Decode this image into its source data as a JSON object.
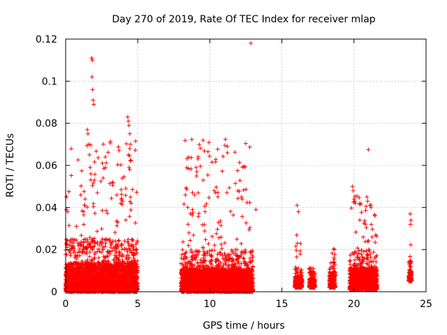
{
  "chart_data": {
    "type": "scatter",
    "title": "Day 270 of 2019, Rate Of TEC Index for receiver mlap",
    "xlabel": "GPS time / hours",
    "ylabel": "ROTI / TECUs",
    "xlim": [
      0,
      25
    ],
    "ylim": [
      0,
      0.12
    ],
    "x_ticks": [
      0,
      5,
      10,
      15,
      20,
      25
    ],
    "y_ticks": [
      0,
      0.02,
      0.04,
      0.06,
      0.08,
      0.1,
      0.12
    ],
    "x_tick_labels": [
      "0",
      "5",
      "10",
      "15",
      "20",
      "25"
    ],
    "y_tick_labels": [
      "0",
      "0.02",
      "0.04",
      "0.06",
      "0.08",
      "0.1",
      "0.12"
    ],
    "grid": true,
    "marker": "+",
    "marker_color": "#ff0000",
    "series": [
      {
        "name": "ROTI",
        "point_count": 8000,
        "clusters": [
          {
            "x_range": [
              0.0,
              5.0
            ],
            "y_floor": 0.0,
            "y_typical_max": 0.025,
            "y_peak": 0.111
          },
          {
            "x_range": [
              8.0,
              13.0
            ],
            "y_floor": 0.0,
            "y_typical_max": 0.02,
            "y_peak": 0.118
          },
          {
            "x_range": [
              15.9,
              16.4
            ],
            "y_floor": 0.002,
            "y_typical_max": 0.012,
            "y_peak": 0.041
          },
          {
            "x_range": [
              16.9,
              17.3
            ],
            "y_floor": 0.002,
            "y_typical_max": 0.01,
            "y_peak": 0.013
          },
          {
            "x_range": [
              18.3,
              18.7
            ],
            "y_floor": 0.002,
            "y_typical_max": 0.015,
            "y_peak": 0.025
          },
          {
            "x_range": [
              19.7,
              21.6
            ],
            "y_floor": 0.001,
            "y_typical_max": 0.02,
            "y_peak": 0.068
          },
          {
            "x_range": [
              23.8,
              24.0
            ],
            "y_floor": 0.005,
            "y_typical_max": 0.015,
            "y_peak": 0.037
          }
        ],
        "notable_points": [
          {
            "x": 0.05,
            "y": 0.039
          },
          {
            "x": 0.15,
            "y": 0.038
          },
          {
            "x": 1.05,
            "y": 0.046
          },
          {
            "x": 1.35,
            "y": 0.044
          },
          {
            "x": 1.5,
            "y": 0.077
          },
          {
            "x": 1.55,
            "y": 0.075
          },
          {
            "x": 1.6,
            "y": 0.07
          },
          {
            "x": 1.65,
            "y": 0.065
          },
          {
            "x": 1.7,
            "y": 0.059
          },
          {
            "x": 1.75,
            "y": 0.056
          },
          {
            "x": 1.8,
            "y": 0.111
          },
          {
            "x": 1.85,
            "y": 0.11
          },
          {
            "x": 1.83,
            "y": 0.102
          },
          {
            "x": 1.87,
            "y": 0.096
          },
          {
            "x": 1.9,
            "y": 0.091
          },
          {
            "x": 1.95,
            "y": 0.089
          },
          {
            "x": 2.0,
            "y": 0.053
          },
          {
            "x": 2.2,
            "y": 0.047
          },
          {
            "x": 2.55,
            "y": 0.061
          },
          {
            "x": 2.75,
            "y": 0.064
          },
          {
            "x": 2.6,
            "y": 0.054
          },
          {
            "x": 3.25,
            "y": 0.052
          },
          {
            "x": 3.55,
            "y": 0.046
          },
          {
            "x": 3.95,
            "y": 0.043
          },
          {
            "x": 4.3,
            "y": 0.083
          },
          {
            "x": 4.35,
            "y": 0.081
          },
          {
            "x": 4.4,
            "y": 0.079
          },
          {
            "x": 4.45,
            "y": 0.075
          },
          {
            "x": 4.5,
            "y": 0.07
          },
          {
            "x": 4.45,
            "y": 0.068
          },
          {
            "x": 4.35,
            "y": 0.065
          },
          {
            "x": 4.4,
            "y": 0.059
          },
          {
            "x": 4.45,
            "y": 0.058
          },
          {
            "x": 4.5,
            "y": 0.045
          },
          {
            "x": 4.55,
            "y": 0.042
          },
          {
            "x": 8.8,
            "y": 0.039
          },
          {
            "x": 8.95,
            "y": 0.046
          },
          {
            "x": 9.05,
            "y": 0.059
          },
          {
            "x": 9.1,
            "y": 0.057
          },
          {
            "x": 9.08,
            "y": 0.055
          },
          {
            "x": 9.2,
            "y": 0.047
          },
          {
            "x": 10.3,
            "y": 0.048
          },
          {
            "x": 10.4,
            "y": 0.047
          },
          {
            "x": 12.2,
            "y": 0.045
          },
          {
            "x": 12.25,
            "y": 0.044
          },
          {
            "x": 12.85,
            "y": 0.118
          },
          {
            "x": 13.2,
            "y": 0.039
          },
          {
            "x": 16.05,
            "y": 0.041
          },
          {
            "x": 16.15,
            "y": 0.038
          },
          {
            "x": 19.9,
            "y": 0.05
          },
          {
            "x": 19.95,
            "y": 0.048
          },
          {
            "x": 20.0,
            "y": 0.044
          },
          {
            "x": 20.05,
            "y": 0.043
          },
          {
            "x": 20.1,
            "y": 0.042
          },
          {
            "x": 20.9,
            "y": 0.045
          },
          {
            "x": 20.95,
            "y": 0.043
          },
          {
            "x": 21.0,
            "y": 0.0675
          },
          {
            "x": 21.1,
            "y": 0.041
          },
          {
            "x": 23.9,
            "y": 0.037
          },
          {
            "x": 23.95,
            "y": 0.034
          },
          {
            "x": 23.92,
            "y": 0.032
          }
        ]
      }
    ]
  }
}
